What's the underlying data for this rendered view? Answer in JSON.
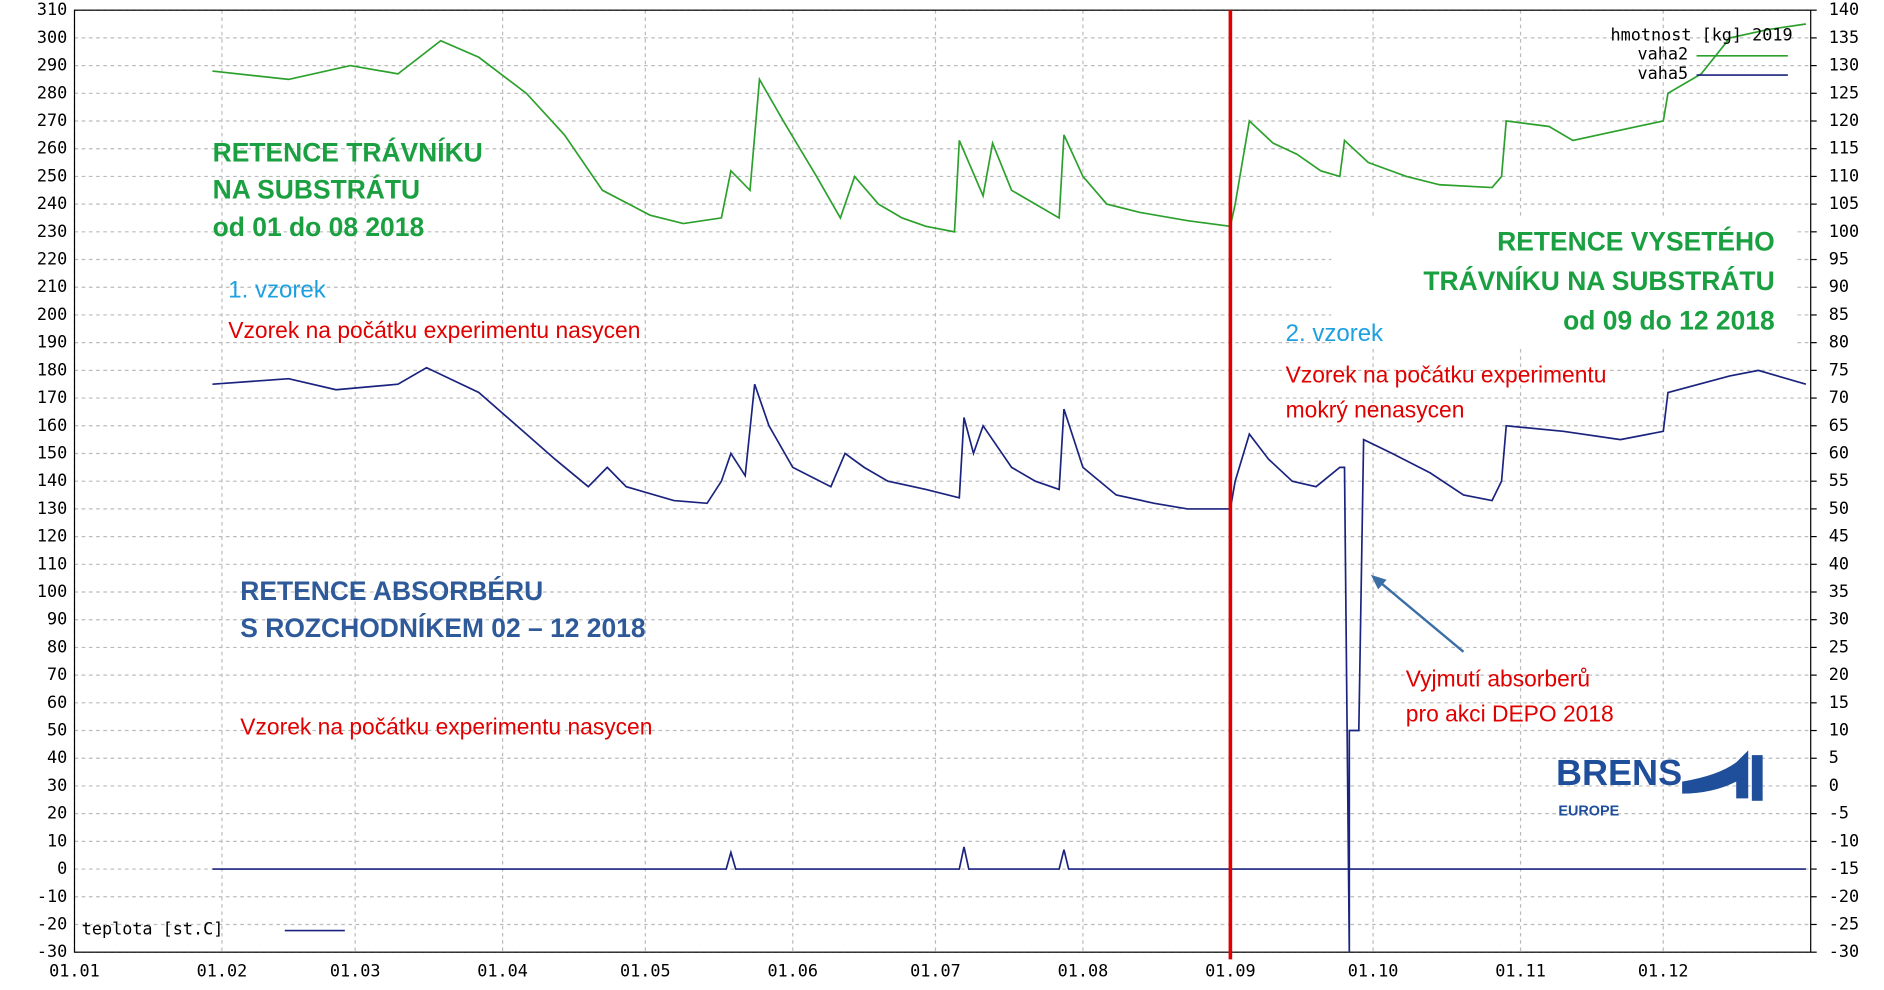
{
  "chart_data": {
    "type": "line",
    "legend_title": "hmotnost [kg] 2019",
    "xlim": [
      0,
      365
    ],
    "xticks": [
      {
        "value": 0,
        "label": "01.01"
      },
      {
        "value": 31,
        "label": "01.02"
      },
      {
        "value": 59,
        "label": "01.03"
      },
      {
        "value": 90,
        "label": "01.04"
      },
      {
        "value": 120,
        "label": "01.05"
      },
      {
        "value": 151,
        "label": "01.06"
      },
      {
        "value": 181,
        "label": "01.07"
      },
      {
        "value": 212,
        "label": "01.08"
      },
      {
        "value": 243,
        "label": "01.09"
      },
      {
        "value": 273,
        "label": "01.10"
      },
      {
        "value": 304,
        "label": "01.11"
      },
      {
        "value": 334,
        "label": "01.12"
      }
    ],
    "ylim": [
      -30,
      310
    ],
    "yticks": [
      -30,
      -20,
      -10,
      0,
      10,
      20,
      30,
      40,
      50,
      60,
      70,
      80,
      90,
      100,
      110,
      120,
      130,
      140,
      150,
      160,
      170,
      180,
      190,
      200,
      210,
      220,
      230,
      240,
      250,
      260,
      270,
      280,
      290,
      300,
      310
    ],
    "y2lim": [
      -30,
      140
    ],
    "y2ticks": [
      -30,
      -25,
      -20,
      -15,
      -10,
      -5,
      0,
      5,
      10,
      15,
      20,
      25,
      30,
      35,
      40,
      45,
      50,
      55,
      60,
      65,
      70,
      75,
      80,
      85,
      90,
      95,
      100,
      105,
      110,
      115,
      120,
      125,
      130,
      135,
      140
    ],
    "grid": true,
    "series": [
      {
        "name": "vaha2",
        "color": "#2ca02c",
        "x": [
          29,
          45,
          58,
          68,
          77,
          85,
          95,
          103,
          111,
          121,
          128,
          136,
          138,
          142,
          144,
          149,
          156,
          161,
          164,
          169,
          174,
          179,
          185,
          186,
          191,
          193,
          197,
          202,
          207,
          208,
          212,
          217,
          224,
          234,
          243,
          244,
          247,
          252,
          257,
          262,
          266,
          267,
          272,
          280,
          287,
          298,
          300,
          301,
          310,
          315,
          323,
          334,
          335,
          342,
          348,
          356,
          364
        ],
        "values": [
          288,
          285,
          290,
          287,
          299,
          293,
          280,
          265,
          245,
          236,
          233,
          235,
          252,
          245,
          285,
          270,
          250,
          235,
          250,
          240,
          235,
          232,
          230,
          263,
          243,
          262,
          245,
          240,
          235,
          265,
          250,
          240,
          237,
          234,
          232,
          240,
          270,
          262,
          258,
          252,
          250,
          263,
          255,
          250,
          247,
          246,
          250,
          270,
          268,
          263,
          266,
          270,
          280,
          287,
          300,
          303,
          305
        ]
      },
      {
        "name": "vaha5",
        "color": "#1a237e",
        "x": [
          29,
          45,
          55,
          68,
          74,
          85,
          93,
          101,
          108,
          112,
          116,
          126,
          133,
          136,
          138,
          141,
          143,
          146,
          151,
          159,
          162,
          166,
          171,
          179,
          186,
          187,
          189,
          191,
          197,
          202,
          207,
          208,
          212,
          219,
          227,
          234,
          243,
          244,
          247,
          251,
          256,
          261,
          266,
          267,
          268,
          268,
          270,
          271,
          277,
          285,
          292,
          298,
          300,
          301,
          313,
          325,
          334,
          335,
          348,
          354,
          364
        ],
        "values": [
          175,
          177,
          173,
          175,
          181,
          172,
          160,
          148,
          138,
          145,
          138,
          133,
          132,
          140,
          150,
          142,
          175,
          160,
          145,
          138,
          150,
          145,
          140,
          137,
          134,
          163,
          150,
          160,
          145,
          140,
          137,
          166,
          145,
          135,
          132,
          130,
          130,
          140,
          157,
          148,
          140,
          138,
          145,
          145,
          -30,
          50,
          50,
          155,
          150,
          143,
          135,
          133,
          140,
          160,
          158,
          155,
          158,
          172,
          178,
          180,
          175
        ]
      },
      {
        "name": "teplota [st.C]",
        "color": "#1a237e",
        "x": [
          29,
          137,
          138,
          139,
          186,
          187,
          188,
          207,
          208,
          209,
          270,
          300,
          364
        ],
        "values": [
          0,
          0,
          6,
          0,
          0,
          8,
          0,
          0,
          7,
          0,
          0,
          0,
          0
        ]
      }
    ],
    "marker_line": {
      "x": 243,
      "color": "#e00000"
    },
    "annotations": [
      {
        "text": "RETENCE  TRÁVNÍKU",
        "color": "#1aa040"
      },
      {
        "text": "NA SUBSTRÁTU",
        "color": "#1aa040"
      },
      {
        "text": "od 01 do 08 2018",
        "color": "#1aa040"
      },
      {
        "text": "1. vzorek",
        "color": "#1ea0e0"
      },
      {
        "text": "Vzorek na počátku experimentu nasycen",
        "color": "#e00000"
      },
      {
        "text": "RETENCE VYSETÉHO",
        "color": "#1aa040"
      },
      {
        "text": "TRÁVNÍKU NA SUBSTRÁTU",
        "color": "#1aa040"
      },
      {
        "text": "od 09 do 12  2018",
        "color": "#1aa040"
      },
      {
        "text": "2. vzorek",
        "color": "#1ea0e0"
      },
      {
        "text": "Vzorek na počátku experimentu",
        "color": "#e00000"
      },
      {
        "text": "mokrý nenasycen",
        "color": "#e00000"
      },
      {
        "text": "RETENCE  ABSORBÉRU",
        "color": "#2f5a9a"
      },
      {
        "text": "S ROZCHODNÍKEM  02 – 12 2018",
        "color": "#2f5a9a"
      },
      {
        "text": "Vyjmutí absorberů",
        "color": "#e00000"
      },
      {
        "text": "pro akci DEPO 2018",
        "color": "#e00000"
      },
      {
        "text": "Vzorek na počátku experimentu nasycen",
        "color": "#e00000"
      }
    ],
    "logo": {
      "name": "BRENS",
      "sub": "EUROPE"
    }
  }
}
